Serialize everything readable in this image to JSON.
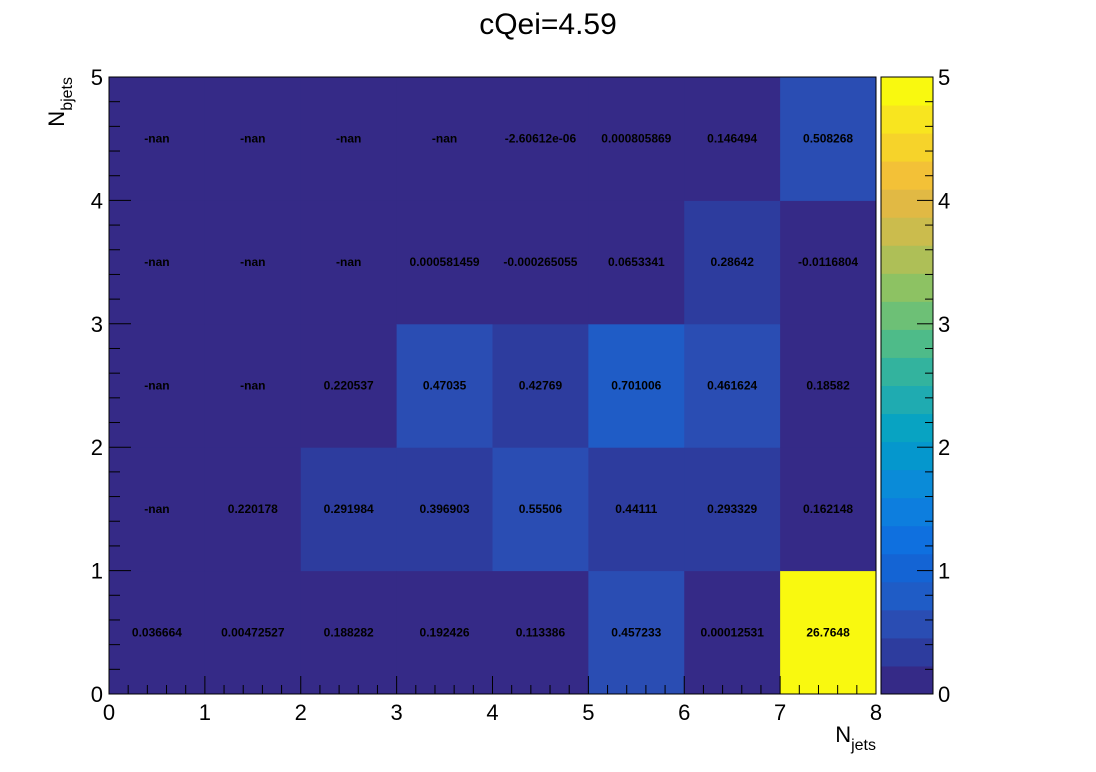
{
  "chart_data": {
    "type": "heatmap",
    "title": "cQei=4.59",
    "xlabel": {
      "main": "N",
      "sub": "jets"
    },
    "ylabel": {
      "main": "N",
      "sub": "bjets"
    },
    "xlim": [
      0,
      8
    ],
    "ylim": [
      0,
      5
    ],
    "x_ticks": [
      "0",
      "1",
      "2",
      "3",
      "4",
      "5",
      "6",
      "7",
      "8"
    ],
    "y_ticks": [
      "0",
      "1",
      "2",
      "3",
      "4",
      "5"
    ],
    "colorbar": {
      "min": 0,
      "max": 5,
      "ticks": [
        "0",
        "1",
        "2",
        "3",
        "4",
        "5"
      ]
    },
    "palette": [
      "#352a87",
      "#2d3c9e",
      "#2a4db3",
      "#1f5cc6",
      "#1464d4",
      "#0f70df",
      "#0d7ede",
      "#0a8bd8",
      "#0597cd",
      "#08a3c2",
      "#1fabb1",
      "#33b39e",
      "#4ebb89",
      "#6dc076",
      "#8dc263",
      "#aebf57",
      "#cbbc4d",
      "#e1b944",
      "#f3c137",
      "#f6d32a",
      "#f8e51f",
      "#f9f90f"
    ],
    "cells": [
      [
        "0.036664",
        "-nan",
        "-nan",
        "-nan",
        "-nan"
      ],
      [
        "0.00472527",
        "0.220178",
        "-nan",
        "-nan",
        "-nan"
      ],
      [
        "0.188282",
        "0.291984",
        "0.220537",
        "-nan",
        "-nan"
      ],
      [
        "0.192426",
        "0.396903",
        "0.47035",
        "0.000581459",
        "-nan"
      ],
      [
        "0.113386",
        "0.55506",
        "0.42769",
        "-0.000265055",
        "-2.60612e-06"
      ],
      [
        "0.457233",
        "0.44111",
        "0.701006",
        "0.0653341",
        "0.000805869"
      ],
      [
        "0.00012531",
        "0.293329",
        "0.461624",
        "0.28642",
        "0.146494"
      ],
      [
        "26.7648",
        "0.162148",
        "0.18582",
        "-0.0116804",
        "0.508268"
      ]
    ]
  }
}
